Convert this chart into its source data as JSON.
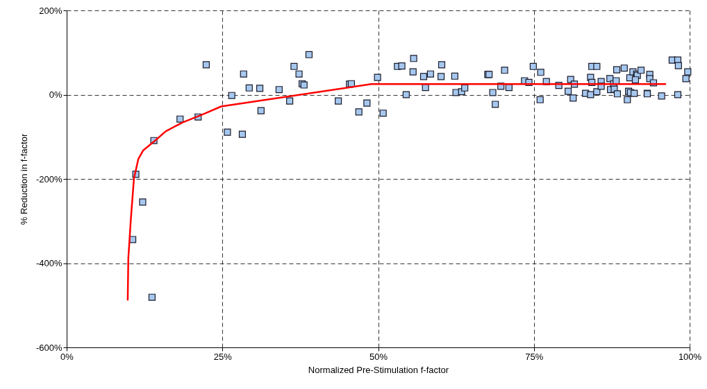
{
  "chart_data": {
    "type": "scatter",
    "xlabel": "Normalized Pre-Stimulation f-factor",
    "ylabel": "% Reduction in f-factor",
    "xlim": [
      0,
      100
    ],
    "ylim": [
      -600,
      200
    ],
    "xticks": [
      {
        "value": 0,
        "label": "0%"
      },
      {
        "value": 25,
        "label": "25%"
      },
      {
        "value": 50,
        "label": "50%"
      },
      {
        "value": 75,
        "label": "75%"
      },
      {
        "value": 100,
        "label": "100%"
      }
    ],
    "yticks": [
      {
        "value": -600,
        "label": "-600%"
      },
      {
        "value": -400,
        "label": "-400%"
      },
      {
        "value": -200,
        "label": "-200%"
      },
      {
        "value": 0,
        "label": "0%"
      },
      {
        "value": 200,
        "label": "200%"
      }
    ],
    "grid": true,
    "series": [
      {
        "color": "#a6c8ef",
        "marker": "square",
        "x": [
          14.0,
          11.1,
          12.2,
          10.6,
          13.7,
          18.2,
          21.1,
          25.8,
          28.2,
          22.4,
          28.4,
          29.3,
          31.0,
          26.5,
          31.2,
          34.1,
          35.8,
          36.5,
          37.3,
          38.9,
          37.8,
          38.1,
          43.6,
          45.4,
          45.7,
          46.9,
          48.2,
          49.9,
          50.8,
          53.1,
          53.8,
          54.5,
          55.7,
          55.6,
          57.3,
          57.6,
          58.4,
          60.2,
          60.1,
          62.3,
          62.5,
          63.4,
          63.9,
          67.6,
          67.8,
          68.4,
          68.8,
          69.7,
          70.3,
          71.0,
          73.5,
          74.2,
          74.9,
          76.1,
          76.0,
          77.0,
          79.0,
          80.5,
          80.9,
          81.5,
          81.3,
          83.3,
          84.1,
          84.1,
          84.3,
          84.3,
          85.1,
          85.1,
          85.8,
          85.8,
          87.2,
          87.3,
          87.8,
          87.9,
          88.2,
          88.3,
          88.4,
          89.5,
          90.0,
          90.2,
          90.4,
          90.5,
          90.9,
          91.1,
          91.5,
          91.6,
          91.3,
          92.2,
          93.2,
          93.2,
          93.6,
          93.6,
          94.2,
          95.5,
          97.2,
          98.1,
          98.2,
          98.1,
          99.4,
          99.7
        ],
        "values": [
          -109,
          -189,
          -255,
          -344,
          -481,
          -58,
          -53,
          -89,
          -94,
          71,
          49,
          16,
          15,
          -2,
          -38,
          12,
          -15,
          67,
          49,
          95,
          26,
          23,
          -15,
          25,
          26,
          -41,
          -20,
          41,
          -44,
          67,
          68,
          0,
          86,
          54,
          43,
          17,
          49,
          71,
          43,
          44,
          5,
          7,
          16,
          48,
          48,
          5,
          -23,
          20,
          58,
          17,
          33,
          29,
          67,
          53,
          -12,
          31,
          22,
          8,
          36,
          25,
          -8,
          3,
          0,
          41,
          29,
          67,
          67,
          7,
          31,
          20,
          38,
          12,
          26,
          13,
          33,
          59,
          2,
          63,
          -12,
          8,
          40,
          5,
          54,
          3,
          49,
          46,
          35,
          58,
          3,
          2,
          48,
          38,
          28,
          -3,
          82,
          82,
          69,
          0,
          38,
          54
        ]
      },
      {
        "type": "line",
        "color": "#ff0000",
        "marker": "none",
        "x": [
          9.8,
          9.9,
          10.3,
          10.8,
          11.5,
          12.3,
          14.2,
          15.9,
          18.6,
          22.0,
          24.8,
          48.9,
          96.1
        ],
        "values": [
          -487,
          -388,
          -296,
          -199,
          -153,
          -132,
          -109,
          -87,
          -66,
          -46,
          -28,
          25,
          25
        ]
      }
    ]
  }
}
